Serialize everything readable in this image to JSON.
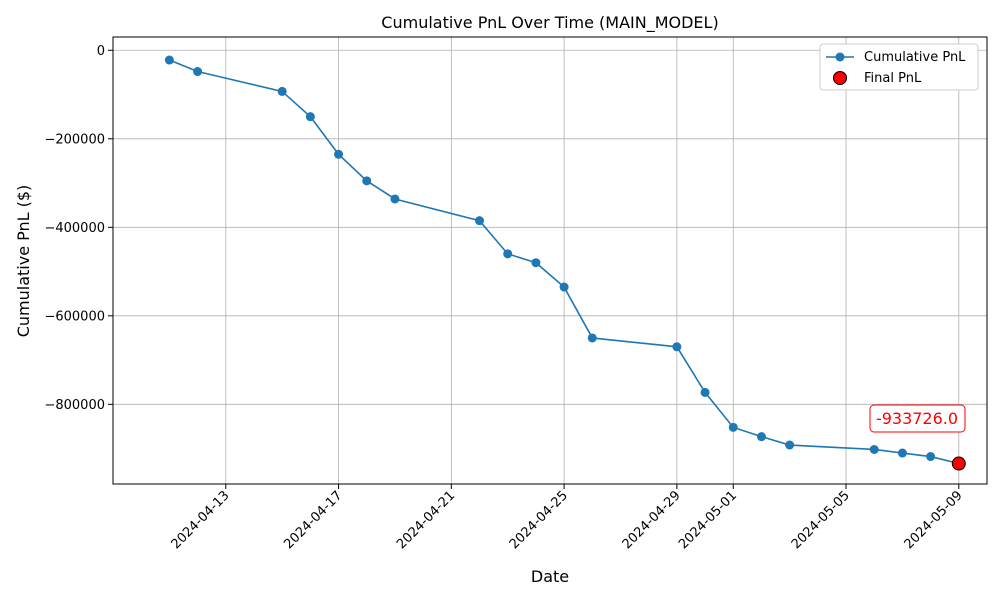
{
  "chart_data": {
    "type": "line",
    "title": "Cumulative PnL Over Time (MAIN_MODEL)",
    "xlabel": "Date",
    "ylabel": "Cumulative PnL ($)",
    "xlim": [
      "2024-04-09",
      "2024-05-10"
    ],
    "ylim": [
      -980000,
      30000
    ],
    "x_ticks": [
      "2024-04-13",
      "2024-04-17",
      "2024-04-21",
      "2024-04-25",
      "2024-04-29",
      "2024-05-01",
      "2024-05-05",
      "2024-05-09"
    ],
    "y_ticks": [
      0,
      -200000,
      -400000,
      -600000,
      -800000
    ],
    "y_tick_labels": [
      "0",
      "−200000",
      "−400000",
      "−600000",
      "−800000"
    ],
    "grid": true,
    "legend_position": "top-right",
    "series": [
      {
        "name": "Cumulative PnL",
        "color": "#1f77b4",
        "marker": "circle",
        "x": [
          "2024-04-11",
          "2024-04-12",
          "2024-04-15",
          "2024-04-16",
          "2024-04-17",
          "2024-04-18",
          "2024-04-19",
          "2024-04-22",
          "2024-04-23",
          "2024-04-24",
          "2024-04-25",
          "2024-04-26",
          "2024-04-29",
          "2024-04-30",
          "2024-05-01",
          "2024-05-02",
          "2024-05-03",
          "2024-05-06",
          "2024-05-07",
          "2024-05-08",
          "2024-05-09"
        ],
        "values": [
          -22000,
          -48000,
          -93000,
          -150000,
          -235000,
          -295000,
          -336000,
          -385000,
          -460000,
          -480000,
          -535000,
          -650000,
          -670000,
          -773000,
          -852000,
          -873000,
          -892000,
          -902000,
          -910000,
          -918000,
          -933726
        ]
      }
    ],
    "final_point": {
      "name": "Final PnL",
      "x": "2024-05-09",
      "value": -933726,
      "color": "#ff0000",
      "label": "-933726.0"
    }
  }
}
